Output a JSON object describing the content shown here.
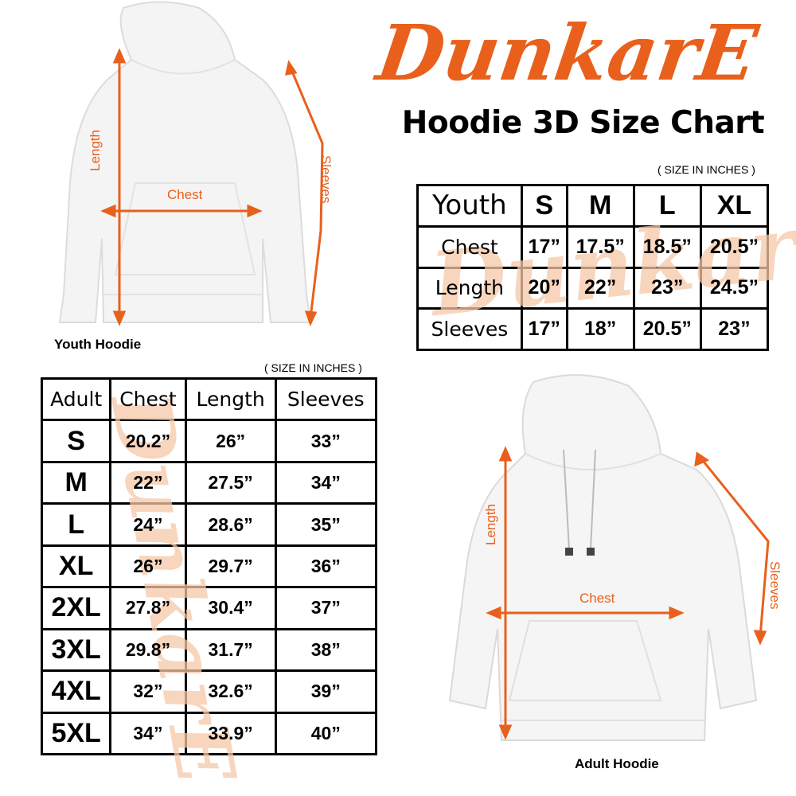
{
  "brand": {
    "logo_text": "DunkarE",
    "color": "#e8601c",
    "watermark_color": "#f6c8a8"
  },
  "title": "Hoodie 3D Size Chart",
  "unit_note": "( SIZE IN INCHES )",
  "youth": {
    "caption": "Youth Hoodie",
    "measure_labels": {
      "length": "Length",
      "chest": "Chest",
      "sleeves": "Sleeves"
    },
    "table": {
      "header": [
        "Youth",
        "S",
        "M",
        "L",
        "XL"
      ],
      "rows": [
        [
          "Chest",
          "17”",
          "17.5”",
          "18.5”",
          "20.5”"
        ],
        [
          "Length",
          "20”",
          "22”",
          "23”",
          "24.5”"
        ],
        [
          "Sleeves",
          "17”",
          "18”",
          "20.5”",
          "23”"
        ]
      ]
    }
  },
  "adult": {
    "caption": "Adult Hoodie",
    "measure_labels": {
      "length": "Length",
      "chest": "Chest",
      "sleeves": "Sleeves"
    },
    "table": {
      "header": [
        "Adult",
        "Chest",
        "Length",
        "Sleeves"
      ],
      "rows": [
        [
          "S",
          "20.2”",
          "26”",
          "33”"
        ],
        [
          "M",
          "22”",
          "27.5”",
          "34”"
        ],
        [
          "L",
          "24”",
          "28.6”",
          "35”"
        ],
        [
          "XL",
          "26”",
          "29.7”",
          "36”"
        ],
        [
          "2XL",
          "27.8”",
          "30.4”",
          "37”"
        ],
        [
          "3XL",
          "29.8”",
          "31.7”",
          "38”"
        ],
        [
          "4XL",
          "32”",
          "32.6”",
          "39”"
        ],
        [
          "5XL",
          "34”",
          "33.9”",
          "40”"
        ]
      ]
    }
  }
}
